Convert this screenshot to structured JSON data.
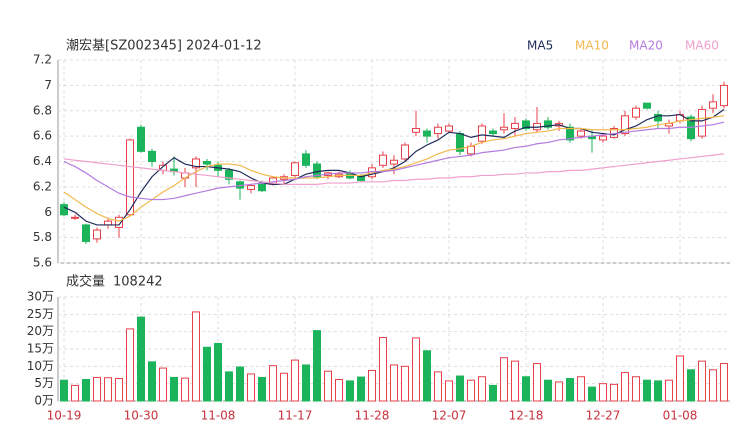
{
  "chart_data": {
    "type": "candlestick",
    "title": "潮宏基[SZ002345] 2024-01-12",
    "up_color": "#e8404a",
    "down_color": "#1bb45a",
    "categories": [
      "10-19",
      null,
      null,
      null,
      null,
      null,
      null,
      "10-30",
      null,
      null,
      null,
      null,
      null,
      null,
      "11-08",
      null,
      null,
      null,
      null,
      null,
      null,
      "11-17",
      null,
      null,
      null,
      null,
      null,
      null,
      "11-28",
      null,
      null,
      null,
      null,
      null,
      null,
      "12-07",
      null,
      null,
      null,
      null,
      null,
      null,
      "12-18",
      null,
      null,
      null,
      null,
      null,
      null,
      "12-27",
      null,
      null,
      null,
      null,
      null,
      null,
      "01-08",
      null,
      null,
      null,
      null
    ],
    "open": [
      6.06,
      5.96,
      5.9,
      5.79,
      5.9,
      5.88,
      5.98,
      6.67,
      6.48,
      6.33,
      6.34,
      6.27,
      6.35,
      6.4,
      6.37,
      6.33,
      6.24,
      6.18,
      6.22,
      6.22,
      6.26,
      6.29,
      6.46,
      6.38,
      6.29,
      6.28,
      6.31,
      6.29,
      6.28,
      6.37,
      6.38,
      6.42,
      6.63,
      6.64,
      6.62,
      6.64,
      6.62,
      6.46,
      6.56,
      6.64,
      6.65,
      6.66,
      6.72,
      6.65,
      6.72,
      6.68,
      6.67,
      6.6,
      6.6,
      6.57,
      6.59,
      6.62,
      6.75,
      6.86,
      6.77,
      6.68,
      6.72,
      6.75,
      6.6,
      6.82,
      6.84
    ],
    "high": [
      6.08,
      5.98,
      5.91,
      5.88,
      5.96,
      5.98,
      6.58,
      6.69,
      6.5,
      6.4,
      6.44,
      6.35,
      6.44,
      6.42,
      6.4,
      6.35,
      6.25,
      6.22,
      6.25,
      6.28,
      6.3,
      6.4,
      6.49,
      6.4,
      6.32,
      6.32,
      6.33,
      6.3,
      6.38,
      6.48,
      6.45,
      6.55,
      6.8,
      6.66,
      6.7,
      6.7,
      6.64,
      6.55,
      6.7,
      6.66,
      6.78,
      6.75,
      6.74,
      6.83,
      6.75,
      6.72,
      6.7,
      6.66,
      6.65,
      6.62,
      6.68,
      6.8,
      6.84,
      6.86,
      6.8,
      6.73,
      6.8,
      6.77,
      6.84,
      6.93,
      7.03
    ],
    "low": [
      5.97,
      5.94,
      5.75,
      5.76,
      5.87,
      5.8,
      5.97,
      6.47,
      6.36,
      6.3,
      6.29,
      6.2,
      6.2,
      6.33,
      6.28,
      6.22,
      6.1,
      6.15,
      6.16,
      6.21,
      6.22,
      6.27,
      6.35,
      6.26,
      6.26,
      6.27,
      6.26,
      6.24,
      6.26,
      6.35,
      6.3,
      6.4,
      6.6,
      6.55,
      6.58,
      6.63,
      6.45,
      6.44,
      6.54,
      6.6,
      6.62,
      6.6,
      6.64,
      6.63,
      6.65,
      6.64,
      6.55,
      6.58,
      6.47,
      6.55,
      6.58,
      6.6,
      6.73,
      6.81,
      6.66,
      6.62,
      6.7,
      6.56,
      6.58,
      6.78,
      6.82
    ],
    "close": [
      5.98,
      5.96,
      5.77,
      5.86,
      5.93,
      5.96,
      6.57,
      6.48,
      6.4,
      6.37,
      6.32,
      6.31,
      6.42,
      6.38,
      6.33,
      6.26,
      6.19,
      6.21,
      6.17,
      6.27,
      6.28,
      6.39,
      6.37,
      6.28,
      6.31,
      6.3,
      6.27,
      6.25,
      6.35,
      6.45,
      6.41,
      6.53,
      6.66,
      6.6,
      6.67,
      6.68,
      6.48,
      6.52,
      6.68,
      6.62,
      6.67,
      6.7,
      6.66,
      6.7,
      6.67,
      6.7,
      6.57,
      6.64,
      6.58,
      6.6,
      6.66,
      6.76,
      6.82,
      6.82,
      6.72,
      6.7,
      6.77,
      6.58,
      6.81,
      6.87,
      7.0
    ],
    "series": [
      {
        "name": "MA5",
        "color": "#1f2a5a",
        "values": [
          6.04,
          6.0,
          5.93,
          5.9,
          5.9,
          5.9,
          6.02,
          6.16,
          6.28,
          6.36,
          6.43,
          6.38,
          6.36,
          6.36,
          6.35,
          6.34,
          6.32,
          6.27,
          6.23,
          6.22,
          6.22,
          6.26,
          6.3,
          6.32,
          6.33,
          6.33,
          6.31,
          6.28,
          6.3,
          6.32,
          6.35,
          6.4,
          6.48,
          6.53,
          6.57,
          6.63,
          6.62,
          6.59,
          6.61,
          6.6,
          6.59,
          6.64,
          6.67,
          6.67,
          6.68,
          6.69,
          6.66,
          6.66,
          6.63,
          6.62,
          6.61,
          6.65,
          6.68,
          6.73,
          6.76,
          6.76,
          6.77,
          6.72,
          6.72,
          6.75,
          6.81
        ]
      },
      {
        "name": "MA10",
        "color": "#f2b84b",
        "values": [
          6.16,
          6.1,
          6.04,
          5.99,
          5.95,
          5.93,
          5.97,
          6.04,
          6.1,
          6.16,
          6.21,
          6.27,
          6.32,
          6.36,
          6.38,
          6.38,
          6.37,
          6.33,
          6.3,
          6.28,
          6.27,
          6.27,
          6.27,
          6.27,
          6.28,
          6.29,
          6.29,
          6.29,
          6.31,
          6.33,
          6.34,
          6.36,
          6.39,
          6.42,
          6.46,
          6.49,
          6.5,
          6.52,
          6.55,
          6.57,
          6.58,
          6.6,
          6.62,
          6.63,
          6.64,
          6.66,
          6.66,
          6.66,
          6.65,
          6.65,
          6.65,
          6.65,
          6.66,
          6.67,
          6.69,
          6.7,
          6.72,
          6.73,
          6.74,
          6.75,
          6.76
        ]
      },
      {
        "name": "MA20",
        "color": "#b57be0",
        "values": [
          6.4,
          6.36,
          6.31,
          6.25,
          6.2,
          6.15,
          6.12,
          6.11,
          6.1,
          6.1,
          6.11,
          6.13,
          6.15,
          6.17,
          6.19,
          6.2,
          6.21,
          6.22,
          6.23,
          6.24,
          6.25,
          6.26,
          6.28,
          6.29,
          6.3,
          6.31,
          6.31,
          6.31,
          6.32,
          6.32,
          6.33,
          6.35,
          6.37,
          6.39,
          6.41,
          6.43,
          6.44,
          6.45,
          6.47,
          6.48,
          6.49,
          6.51,
          6.52,
          6.54,
          6.55,
          6.57,
          6.58,
          6.59,
          6.6,
          6.61,
          6.62,
          6.63,
          6.64,
          6.65,
          6.66,
          6.66,
          6.67,
          6.67,
          6.68,
          6.69,
          6.71
        ]
      },
      {
        "name": "MA60",
        "color": "#f0a0cc",
        "values": [
          6.42,
          6.41,
          6.4,
          6.39,
          6.38,
          6.37,
          6.36,
          6.35,
          6.34,
          6.33,
          6.32,
          6.31,
          6.3,
          6.29,
          6.28,
          6.27,
          6.26,
          6.25,
          6.24,
          6.23,
          6.22,
          6.22,
          6.22,
          6.22,
          6.23,
          6.23,
          6.23,
          6.24,
          6.24,
          6.24,
          6.25,
          6.25,
          6.26,
          6.26,
          6.27,
          6.27,
          6.28,
          6.28,
          6.29,
          6.29,
          6.3,
          6.3,
          6.31,
          6.31,
          6.32,
          6.32,
          6.33,
          6.33,
          6.34,
          6.35,
          6.36,
          6.37,
          6.38,
          6.39,
          6.4,
          6.41,
          6.42,
          6.43,
          6.44,
          6.45,
          6.46
        ]
      }
    ],
    "ylim": [
      5.6,
      7.2
    ],
    "yticks": [
      5.6,
      5.8,
      6,
      6.2,
      6.4,
      6.6,
      6.8,
      7,
      7.2
    ],
    "volume_title": "成交量",
    "volume_latest": 108242,
    "volume": [
      60000,
      45000,
      62000,
      68000,
      67000,
      65000,
      208000,
      242000,
      113000,
      95000,
      68000,
      66000,
      257000,
      155000,
      166000,
      84000,
      98000,
      78000,
      68000,
      102000,
      80000,
      118000,
      104000,
      203000,
      86000,
      62000,
      58000,
      69000,
      88000,
      183000,
      104000,
      100000,
      182000,
      145000,
      84000,
      58000,
      72000,
      60000,
      70000,
      45000,
      125000,
      115000,
      70000,
      108000,
      60000,
      55000,
      65000,
      70000,
      40000,
      50000,
      48000,
      82000,
      70000,
      60000,
      58000,
      60000,
      130000,
      90000,
      115000,
      90000,
      108242
    ],
    "volume_ylim": [
      0,
      300000
    ],
    "volume_yticks": [
      {
        "value": 0,
        "label": "0万"
      },
      {
        "value": 50000,
        "label": "5万"
      },
      {
        "value": 100000,
        "label": "10万"
      },
      {
        "value": 150000,
        "label": "15万"
      },
      {
        "value": 200000,
        "label": "20万"
      },
      {
        "value": 250000,
        "label": "25万"
      },
      {
        "value": 300000,
        "label": "30万"
      }
    ]
  }
}
